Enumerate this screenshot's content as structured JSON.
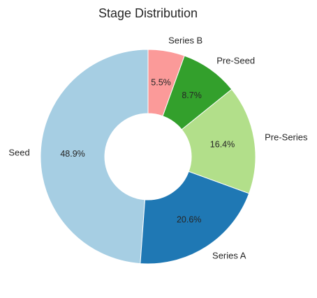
{
  "chart_data": {
    "type": "pie",
    "title": "Stage Distribution",
    "donut": true,
    "start_angle_deg": 90,
    "direction": "counterclockwise",
    "slices": [
      {
        "label": "Seed",
        "value": 48.9,
        "pct_label": "48.9%",
        "color": "#a6cee3"
      },
      {
        "label": "Series A",
        "value": 20.6,
        "pct_label": "20.6%",
        "color": "#1f78b4"
      },
      {
        "label": "Pre-Series",
        "value": 16.4,
        "pct_label": "16.4%",
        "color": "#b2df8a"
      },
      {
        "label": "Pre-Seed",
        "value": 8.7,
        "pct_label": "8.7%",
        "color": "#33a02c"
      },
      {
        "label": "Series B",
        "value": 5.5,
        "pct_label": "5.5%",
        "color": "#fb9a99"
      }
    ]
  }
}
